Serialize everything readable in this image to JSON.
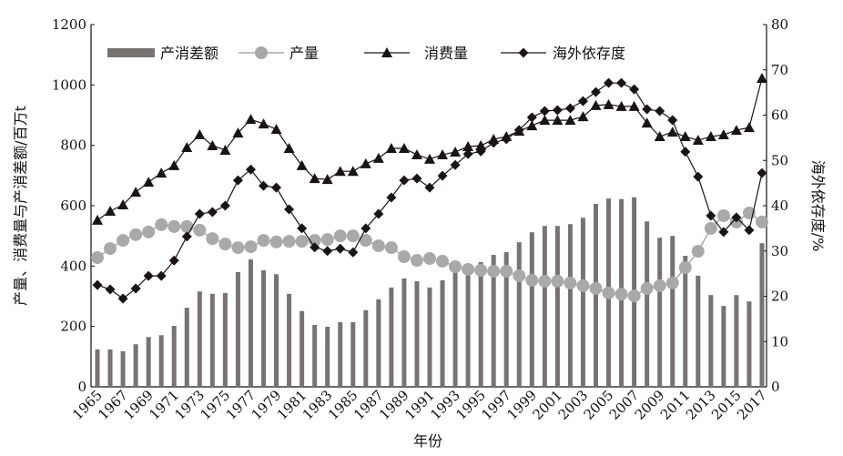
{
  "chart_data": {
    "type": "bar+line",
    "title": "",
    "xlabel": "年份",
    "ylabel_left": "产量、消费量与产消差额/百万t",
    "ylabel_right": "海外依存度/%",
    "ylim_left": [
      0,
      1200
    ],
    "ylim_right": [
      0,
      80
    ],
    "yticks_left": [
      0,
      200,
      400,
      600,
      800,
      1000,
      1200
    ],
    "yticks_right": [
      0,
      10,
      20,
      30,
      40,
      50,
      60,
      70,
      80
    ],
    "legend_position": "top",
    "x": [
      1965,
      1966,
      1967,
      1968,
      1969,
      1970,
      1971,
      1972,
      1973,
      1974,
      1975,
      1976,
      1977,
      1978,
      1979,
      1980,
      1981,
      1982,
      1983,
      1984,
      1985,
      1986,
      1987,
      1988,
      1989,
      1990,
      1991,
      1992,
      1993,
      1994,
      1995,
      1996,
      1997,
      1998,
      1999,
      2000,
      2001,
      2002,
      2003,
      2004,
      2005,
      2006,
      2007,
      2008,
      2009,
      2010,
      2011,
      2012,
      2013,
      2014,
      2015,
      2016,
      2017
    ],
    "xtick_labels": [
      "1965",
      "1967",
      "1969",
      "1971",
      "1973",
      "1975",
      "1977",
      "1979",
      "1981",
      "1983",
      "1985",
      "1987",
      "1989",
      "1991",
      "1993",
      "1995",
      "1997",
      "1999",
      "2001",
      "2003",
      "2005",
      "2007",
      "2009",
      "2011",
      "2013",
      "2015",
      "2017"
    ],
    "series": [
      {
        "name": "产消差额",
        "type": "bar",
        "axis": "left",
        "color": "#787272",
        "values": [
          124,
          124,
          118,
          141,
          165,
          171,
          202,
          262,
          316,
          308,
          311,
          380,
          422,
          386,
          373,
          308,
          251,
          205,
          199,
          214,
          214,
          254,
          290,
          329,
          359,
          350,
          329,
          353,
          380,
          407,
          413,
          437,
          446,
          479,
          512,
          533,
          533,
          539,
          560,
          606,
          624,
          622,
          628,
          548,
          494,
          500,
          434,
          368,
          304,
          268,
          304,
          283,
          476
        ]
      },
      {
        "name": "产量",
        "type": "line",
        "marker": "circle",
        "axis": "left",
        "color": "#a9a9a9",
        "values": [
          428,
          458,
          485,
          504,
          513,
          537,
          531,
          531,
          519,
          491,
          473,
          461,
          464,
          485,
          480,
          482,
          482,
          485,
          488,
          500,
          500,
          485,
          467,
          461,
          431,
          419,
          425,
          416,
          398,
          389,
          386,
          383,
          383,
          368,
          353,
          350,
          350,
          344,
          335,
          326,
          311,
          307,
          301,
          326,
          335,
          344,
          395,
          449,
          525,
          567,
          546,
          576,
          546
        ]
      },
      {
        "name": "消费量",
        "type": "line",
        "marker": "triangle",
        "axis": "left",
        "color": "#1a1414",
        "values": [
          552,
          582,
          603,
          645,
          678,
          708,
          733,
          793,
          835,
          799,
          784,
          841,
          886,
          871,
          853,
          790,
          733,
          690,
          687,
          714,
          714,
          739,
          757,
          790,
          790,
          769,
          754,
          769,
          778,
          796,
          799,
          820,
          829,
          847,
          865,
          883,
          883,
          883,
          895,
          932,
          935,
          929,
          929,
          874,
          829,
          844,
          829,
          817,
          829,
          835,
          850,
          859,
          1022
        ]
      },
      {
        "name": "海外依存度",
        "type": "line",
        "marker": "diamond",
        "axis": "right",
        "color": "#1a1414",
        "values": [
          22.5,
          21.5,
          19.5,
          21.7,
          24.5,
          24.5,
          27.9,
          33.2,
          38.2,
          38.6,
          40,
          45.6,
          48,
          44.4,
          44,
          39.2,
          35,
          30.8,
          30,
          30.5,
          29.7,
          35,
          38.2,
          41.8,
          45.6,
          46,
          44,
          46.6,
          49,
          51.4,
          52,
          53.9,
          54.7,
          56.7,
          59.5,
          60.9,
          61.1,
          61.5,
          63.1,
          65.1,
          67.1,
          67.1,
          65.7,
          61.3,
          60.9,
          58.9,
          51.9,
          46.4,
          37.8,
          34.2,
          37.4,
          34.6,
          47.2
        ]
      }
    ]
  }
}
